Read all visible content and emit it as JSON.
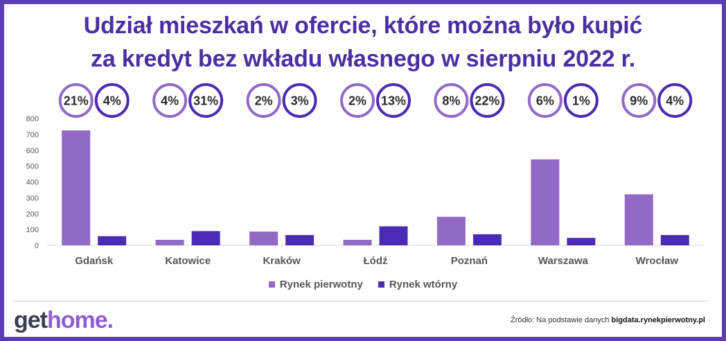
{
  "title_line1": "Udział mieszkań w ofercie, które można było kupić",
  "title_line2": "za kredyt bez wkładu własnego w sierpniu 2022 r.",
  "colors": {
    "primary": "#9369c8",
    "secondary": "#4b2bb3",
    "title": "#4a2fa3"
  },
  "chart_data": {
    "type": "bar",
    "categories": [
      "Gdańsk",
      "Katowice",
      "Kraków",
      "Łódź",
      "Poznań",
      "Warszawa",
      "Wrocław"
    ],
    "series": [
      {
        "name": "Rynek pierwotny",
        "values": [
          725,
          35,
          87,
          35,
          180,
          542,
          322
        ],
        "badges": [
          "21%",
          "4%",
          "2%",
          "2%",
          "8%",
          "6%",
          "9%"
        ]
      },
      {
        "name": "Rynek wtórny",
        "values": [
          58,
          90,
          65,
          120,
          70,
          47,
          65
        ],
        "badges": [
          "4%",
          "31%",
          "3%",
          "13%",
          "22%",
          "1%",
          "4%"
        ]
      }
    ],
    "ylim": [
      0,
      800
    ],
    "yticks": [
      0,
      100,
      200,
      300,
      400,
      500,
      600,
      700,
      800
    ],
    "grid": false,
    "legend": "bottom"
  },
  "logo": {
    "part1": "get",
    "part2": "home."
  },
  "source": {
    "prefix": "Źródło: Na podstawie danych ",
    "site": "bigdata.rynekpierwotny.pl"
  }
}
